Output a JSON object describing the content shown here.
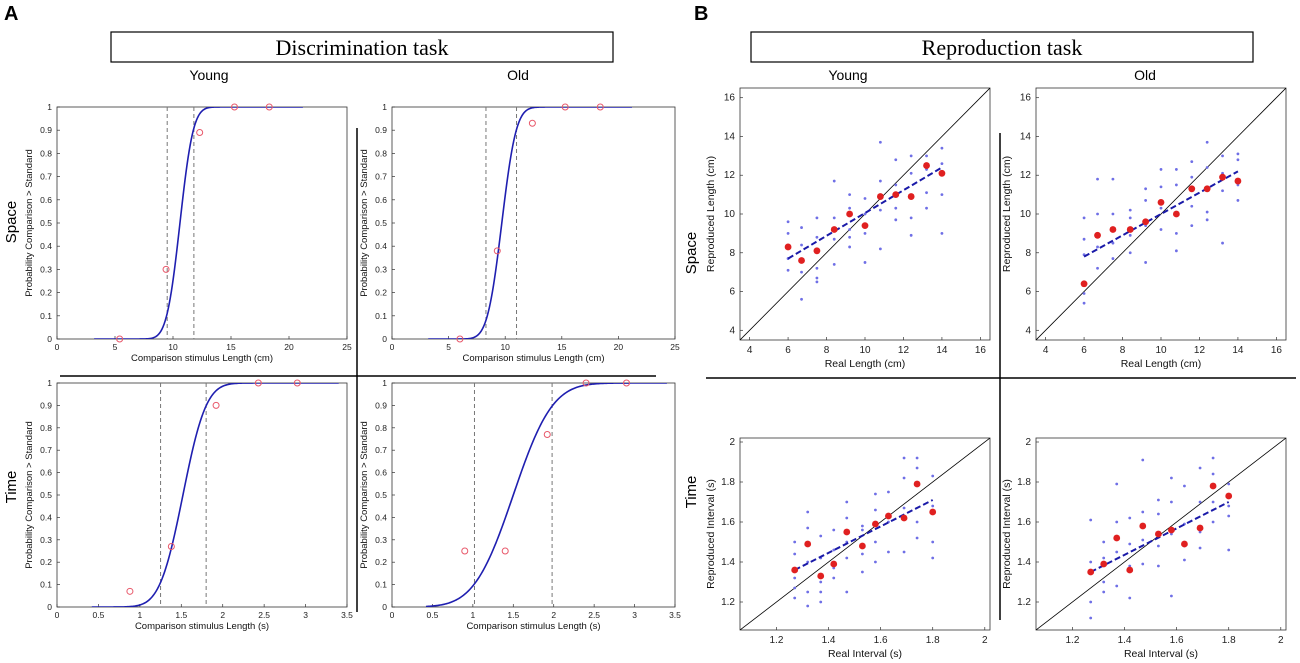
{
  "panels": {
    "A": {
      "letter": "A",
      "title": "Discrimination task",
      "groups": [
        "Young",
        "Old"
      ],
      "rows": [
        "Space",
        "Time"
      ]
    },
    "B": {
      "letter": "B",
      "title": "Reproduction task",
      "groups": [
        "Young",
        "Old"
      ],
      "rows": [
        "Space",
        "Time"
      ]
    }
  },
  "colors": {
    "curve": "#1f1fb0",
    "marker": "#e8586a",
    "dash": "#777777",
    "scatter": "#6f6fe6",
    "means": "#e02020",
    "fit": "#1a1aa8",
    "identity": "#000000"
  },
  "chart_data": [
    {
      "id": "disc-space-young",
      "type": "line",
      "xlabel": "Comparison stimulus Length (cm)",
      "ylabel": "Probability Comparison > Standard",
      "xlim": [
        0,
        25
      ],
      "ylim": [
        0,
        1
      ],
      "xticks": [
        0,
        5,
        10,
        15,
        20,
        25
      ],
      "yticks": [
        0,
        0.1,
        0.2,
        0.3,
        0.4,
        0.5,
        0.6,
        0.7,
        0.8,
        0.9,
        1
      ],
      "curve": {
        "mu": 10.6,
        "sigma": 0.9,
        "x_range": [
          3.2,
          21.2
        ]
      },
      "dashed_x": [
        9.5,
        11.8
      ],
      "points": [
        {
          "x": 5.4,
          "y": 0.0
        },
        {
          "x": 9.4,
          "y": 0.3
        },
        {
          "x": 12.3,
          "y": 0.89
        },
        {
          "x": 15.3,
          "y": 1.0
        },
        {
          "x": 18.3,
          "y": 1.0
        }
      ]
    },
    {
      "id": "disc-space-old",
      "type": "line",
      "xlabel": "Comparison stimulus Length (cm)",
      "ylabel": "Probability Comparison > Standard",
      "xlim": [
        0,
        25
      ],
      "ylim": [
        0,
        1
      ],
      "xticks": [
        0,
        5,
        10,
        15,
        20,
        25
      ],
      "yticks": [
        0,
        0.1,
        0.2,
        0.3,
        0.4,
        0.5,
        0.6,
        0.7,
        0.8,
        0.9,
        1
      ],
      "curve": {
        "mu": 9.7,
        "sigma": 1.0,
        "x_range": [
          3.2,
          21.2
        ]
      },
      "dashed_x": [
        8.3,
        11.0
      ],
      "points": [
        {
          "x": 6.0,
          "y": 0.0
        },
        {
          "x": 9.3,
          "y": 0.38
        },
        {
          "x": 12.4,
          "y": 0.93
        },
        {
          "x": 15.3,
          "y": 1.0
        },
        {
          "x": 18.4,
          "y": 1.0
        }
      ]
    },
    {
      "id": "disc-time-young",
      "type": "line",
      "xlabel": "Comparison stimulus Length (s)",
      "ylabel": "Probability Comparison > Standard",
      "xlim": [
        0,
        3.5
      ],
      "ylim": [
        0,
        1
      ],
      "xticks": [
        0,
        0.5,
        1,
        1.5,
        2,
        2.5,
        3,
        3.5
      ],
      "yticks": [
        0,
        0.1,
        0.2,
        0.3,
        0.4,
        0.5,
        0.6,
        0.7,
        0.8,
        0.9,
        1
      ],
      "curve": {
        "mu": 1.52,
        "sigma": 0.22,
        "x_range": [
          0.42,
          3.4
        ]
      },
      "dashed_x": [
        1.25,
        1.8
      ],
      "points": [
        {
          "x": 0.88,
          "y": 0.07
        },
        {
          "x": 1.38,
          "y": 0.27
        },
        {
          "x": 1.92,
          "y": 0.9
        },
        {
          "x": 2.43,
          "y": 1.0
        },
        {
          "x": 2.9,
          "y": 1.0
        }
      ]
    },
    {
      "id": "disc-time-old",
      "type": "line",
      "xlabel": "Comparison stimulus Length (s)",
      "ylabel": "Probability Comparison > Standard",
      "xlim": [
        0,
        3.5
      ],
      "ylim": [
        0,
        1
      ],
      "xticks": [
        0,
        0.5,
        1,
        1.5,
        2,
        2.5,
        3,
        3.5
      ],
      "yticks": [
        0,
        0.1,
        0.2,
        0.3,
        0.4,
        0.5,
        0.6,
        0.7,
        0.8,
        0.9,
        1
      ],
      "curve": {
        "mu": 1.5,
        "sigma": 0.38,
        "x_range": [
          0.42,
          3.4
        ]
      },
      "dashed_x": [
        1.02,
        1.98
      ],
      "points": [
        {
          "x": 0.9,
          "y": 0.25
        },
        {
          "x": 1.4,
          "y": 0.25
        },
        {
          "x": 1.92,
          "y": 0.77
        },
        {
          "x": 2.4,
          "y": 1.0
        },
        {
          "x": 2.9,
          "y": 1.0
        }
      ]
    },
    {
      "id": "repro-space-young",
      "type": "scatter",
      "xlabel": "Real Length (cm)",
      "ylabel": "Reproduced Length (cm)",
      "xlim": [
        3.5,
        16.5
      ],
      "ylim": [
        3.5,
        16.5
      ],
      "xticks": [
        4,
        6,
        8,
        10,
        12,
        14,
        16
      ],
      "yticks": [
        4,
        6,
        8,
        10,
        12,
        14,
        16
      ],
      "identity": true,
      "fit": [
        [
          6,
          7.7
        ],
        [
          14,
          12.4
        ]
      ],
      "means": [
        [
          6.0,
          8.3
        ],
        [
          6.7,
          7.6
        ],
        [
          7.5,
          8.1
        ],
        [
          8.4,
          9.2
        ],
        [
          9.2,
          10.0
        ],
        [
          10.0,
          9.4
        ],
        [
          10.8,
          10.9
        ],
        [
          11.6,
          11.0
        ],
        [
          12.4,
          10.9
        ],
        [
          13.2,
          12.5
        ],
        [
          14.0,
          12.1
        ]
      ],
      "points": [
        [
          6.0,
          9.6
        ],
        [
          6.0,
          9.0
        ],
        [
          6.0,
          7.7
        ],
        [
          6.0,
          7.1
        ],
        [
          6.7,
          8.4
        ],
        [
          6.7,
          7.0
        ],
        [
          6.7,
          5.6
        ],
        [
          6.7,
          9.3
        ],
        [
          7.5,
          9.8
        ],
        [
          7.5,
          8.8
        ],
        [
          7.5,
          7.2
        ],
        [
          7.5,
          6.5
        ],
        [
          7.5,
          6.7
        ],
        [
          8.4,
          11.7
        ],
        [
          8.4,
          9.8
        ],
        [
          8.4,
          8.7
        ],
        [
          8.4,
          7.4
        ],
        [
          9.2,
          11.0
        ],
        [
          9.2,
          10.3
        ],
        [
          9.2,
          9.2
        ],
        [
          9.2,
          8.8
        ],
        [
          9.2,
          8.3
        ],
        [
          10.0,
          10.8
        ],
        [
          10.0,
          10.0
        ],
        [
          10.0,
          9.0
        ],
        [
          10.0,
          7.5
        ],
        [
          10.8,
          13.7
        ],
        [
          10.8,
          11.7
        ],
        [
          10.8,
          10.2
        ],
        [
          10.8,
          8.2
        ],
        [
          11.6,
          12.8
        ],
        [
          11.6,
          11.5
        ],
        [
          11.6,
          10.3
        ],
        [
          11.6,
          9.7
        ],
        [
          12.4,
          13.0
        ],
        [
          12.4,
          12.1
        ],
        [
          12.4,
          9.8
        ],
        [
          12.4,
          8.9
        ],
        [
          13.2,
          13.0
        ],
        [
          13.2,
          12.3
        ],
        [
          13.2,
          11.1
        ],
        [
          13.2,
          10.3
        ],
        [
          14.0,
          13.4
        ],
        [
          14.0,
          12.6
        ],
        [
          14.0,
          11.0
        ],
        [
          14.0,
          9.0
        ]
      ]
    },
    {
      "id": "repro-space-old",
      "type": "scatter",
      "xlabel": "Real Length (cm)",
      "ylabel": "Reproduced Length (cm)",
      "xlim": [
        3.5,
        16.5
      ],
      "ylim": [
        3.5,
        16.5
      ],
      "xticks": [
        4,
        6,
        8,
        10,
        12,
        14,
        16
      ],
      "yticks": [
        4,
        6,
        8,
        10,
        12,
        14,
        16
      ],
      "identity": true,
      "fit": [
        [
          6,
          7.8
        ],
        [
          14,
          12.2
        ]
      ],
      "means": [
        [
          6.0,
          6.4
        ],
        [
          6.7,
          8.9
        ],
        [
          7.5,
          9.2
        ],
        [
          8.4,
          9.2
        ],
        [
          9.2,
          9.6
        ],
        [
          10.0,
          10.6
        ],
        [
          10.8,
          10.0
        ],
        [
          11.6,
          11.3
        ],
        [
          12.4,
          11.3
        ],
        [
          13.2,
          11.9
        ],
        [
          14.0,
          11.7
        ]
      ],
      "points": [
        [
          6.0,
          9.8
        ],
        [
          6.0,
          8.7
        ],
        [
          6.0,
          7.9
        ],
        [
          6.0,
          5.9
        ],
        [
          6.0,
          5.4
        ],
        [
          6.7,
          11.8
        ],
        [
          6.7,
          10.0
        ],
        [
          6.7,
          8.3
        ],
        [
          6.7,
          7.2
        ],
        [
          7.5,
          11.8
        ],
        [
          7.5,
          10.0
        ],
        [
          7.5,
          8.5
        ],
        [
          7.5,
          7.7
        ],
        [
          8.4,
          10.2
        ],
        [
          8.4,
          9.8
        ],
        [
          8.4,
          8.9
        ],
        [
          8.4,
          8.0
        ],
        [
          9.2,
          11.3
        ],
        [
          9.2,
          10.7
        ],
        [
          9.2,
          9.4
        ],
        [
          9.2,
          7.5
        ],
        [
          10.0,
          12.3
        ],
        [
          10.0,
          11.4
        ],
        [
          10.0,
          10.3
        ],
        [
          10.0,
          9.2
        ],
        [
          10.8,
          12.3
        ],
        [
          10.8,
          11.5
        ],
        [
          10.8,
          9.0
        ],
        [
          10.8,
          8.1
        ],
        [
          11.6,
          12.7
        ],
        [
          11.6,
          11.9
        ],
        [
          11.6,
          10.4
        ],
        [
          11.6,
          9.4
        ],
        [
          12.4,
          13.7
        ],
        [
          12.4,
          12.4
        ],
        [
          12.4,
          10.1
        ],
        [
          12.4,
          9.7
        ],
        [
          13.2,
          13.0
        ],
        [
          13.2,
          12.1
        ],
        [
          13.2,
          11.2
        ],
        [
          13.2,
          8.5
        ],
        [
          14.0,
          13.1
        ],
        [
          14.0,
          12.8
        ],
        [
          14.0,
          11.5
        ],
        [
          14.0,
          10.7
        ]
      ]
    },
    {
      "id": "repro-time-young",
      "type": "scatter",
      "xlabel": "Real Interval (s)",
      "ylabel": "Reproduced Interval (s)",
      "xlim": [
        1.06,
        2.02
      ],
      "ylim": [
        1.06,
        2.02
      ],
      "xticks": [
        1.2,
        1.4,
        1.6,
        1.8,
        2
      ],
      "yticks": [
        1.2,
        1.4,
        1.6,
        1.8,
        2
      ],
      "identity": true,
      "fit": [
        [
          1.27,
          1.36
        ],
        [
          1.8,
          1.71
        ]
      ],
      "means": [
        [
          1.27,
          1.36
        ],
        [
          1.32,
          1.49
        ],
        [
          1.37,
          1.33
        ],
        [
          1.42,
          1.39
        ],
        [
          1.47,
          1.55
        ],
        [
          1.53,
          1.48
        ],
        [
          1.58,
          1.59
        ],
        [
          1.63,
          1.63
        ],
        [
          1.69,
          1.62
        ],
        [
          1.74,
          1.79
        ],
        [
          1.8,
          1.65
        ]
      ],
      "points": [
        [
          1.27,
          1.5
        ],
        [
          1.27,
          1.44
        ],
        [
          1.27,
          1.32
        ],
        [
          1.27,
          1.27
        ],
        [
          1.27,
          1.22
        ],
        [
          1.32,
          1.65
        ],
        [
          1.32,
          1.57
        ],
        [
          1.32,
          1.4
        ],
        [
          1.32,
          1.25
        ],
        [
          1.32,
          1.18
        ],
        [
          1.37,
          1.53
        ],
        [
          1.37,
          1.42
        ],
        [
          1.37,
          1.3
        ],
        [
          1.37,
          1.25
        ],
        [
          1.37,
          1.2
        ],
        [
          1.42,
          1.56
        ],
        [
          1.42,
          1.46
        ],
        [
          1.42,
          1.37
        ],
        [
          1.42,
          1.32
        ],
        [
          1.47,
          1.7
        ],
        [
          1.47,
          1.62
        ],
        [
          1.47,
          1.5
        ],
        [
          1.47,
          1.42
        ],
        [
          1.47,
          1.25
        ],
        [
          1.53,
          1.58
        ],
        [
          1.53,
          1.56
        ],
        [
          1.53,
          1.44
        ],
        [
          1.53,
          1.35
        ],
        [
          1.58,
          1.74
        ],
        [
          1.58,
          1.66
        ],
        [
          1.58,
          1.5
        ],
        [
          1.58,
          1.4
        ],
        [
          1.63,
          1.75
        ],
        [
          1.63,
          1.6
        ],
        [
          1.63,
          1.45
        ],
        [
          1.69,
          1.92
        ],
        [
          1.69,
          1.82
        ],
        [
          1.69,
          1.67
        ],
        [
          1.69,
          1.45
        ],
        [
          1.74,
          1.92
        ],
        [
          1.74,
          1.87
        ],
        [
          1.74,
          1.6
        ],
        [
          1.74,
          1.52
        ],
        [
          1.8,
          1.83
        ],
        [
          1.8,
          1.68
        ],
        [
          1.8,
          1.5
        ],
        [
          1.8,
          1.42
        ]
      ]
    },
    {
      "id": "repro-time-old",
      "type": "scatter",
      "xlabel": "Real Interval (s)",
      "ylabel": "Reproduced Interval (s)",
      "xlim": [
        1.06,
        2.02
      ],
      "ylim": [
        1.06,
        2.02
      ],
      "xticks": [
        1.2,
        1.4,
        1.6,
        1.8,
        2
      ],
      "yticks": [
        1.2,
        1.4,
        1.6,
        1.8,
        2
      ],
      "identity": true,
      "fit": [
        [
          1.27,
          1.35
        ],
        [
          1.8,
          1.7
        ]
      ],
      "means": [
        [
          1.27,
          1.35
        ],
        [
          1.32,
          1.39
        ],
        [
          1.37,
          1.52
        ],
        [
          1.42,
          1.36
        ],
        [
          1.47,
          1.58
        ],
        [
          1.53,
          1.54
        ],
        [
          1.58,
          1.56
        ],
        [
          1.63,
          1.49
        ],
        [
          1.69,
          1.57
        ],
        [
          1.74,
          1.78
        ],
        [
          1.8,
          1.73
        ]
      ],
      "points": [
        [
          1.27,
          1.61
        ],
        [
          1.27,
          1.4
        ],
        [
          1.27,
          1.2
        ],
        [
          1.27,
          1.12
        ],
        [
          1.32,
          1.5
        ],
        [
          1.32,
          1.42
        ],
        [
          1.32,
          1.3
        ],
        [
          1.32,
          1.25
        ],
        [
          1.37,
          1.79
        ],
        [
          1.37,
          1.6
        ],
        [
          1.37,
          1.45
        ],
        [
          1.37,
          1.28
        ],
        [
          1.42,
          1.62
        ],
        [
          1.42,
          1.49
        ],
        [
          1.42,
          1.38
        ],
        [
          1.42,
          1.22
        ],
        [
          1.47,
          1.91
        ],
        [
          1.47,
          1.65
        ],
        [
          1.47,
          1.51
        ],
        [
          1.47,
          1.39
        ],
        [
          1.53,
          1.71
        ],
        [
          1.53,
          1.64
        ],
        [
          1.53,
          1.48
        ],
        [
          1.53,
          1.38
        ],
        [
          1.58,
          1.82
        ],
        [
          1.58,
          1.7
        ],
        [
          1.58,
          1.54
        ],
        [
          1.58,
          1.23
        ],
        [
          1.63,
          1.78
        ],
        [
          1.63,
          1.59
        ],
        [
          1.63,
          1.48
        ],
        [
          1.63,
          1.41
        ],
        [
          1.69,
          1.87
        ],
        [
          1.69,
          1.7
        ],
        [
          1.69,
          1.55
        ],
        [
          1.69,
          1.47
        ],
        [
          1.74,
          1.92
        ],
        [
          1.74,
          1.84
        ],
        [
          1.74,
          1.7
        ],
        [
          1.74,
          1.6
        ],
        [
          1.8,
          1.79
        ],
        [
          1.8,
          1.68
        ],
        [
          1.8,
          1.63
        ],
        [
          1.8,
          1.46
        ]
      ]
    }
  ]
}
